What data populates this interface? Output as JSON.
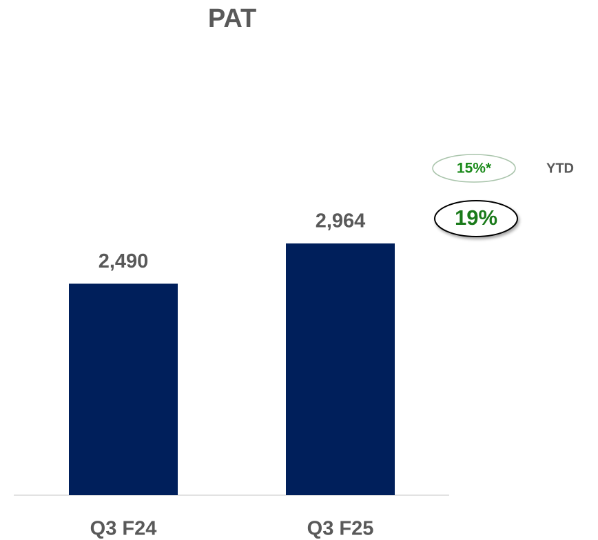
{
  "chart_data": {
    "type": "bar",
    "title": "PAT",
    "categories": [
      "Q3 F24",
      "Q3 F25"
    ],
    "values": [
      2490,
      2964
    ],
    "value_labels": [
      "2,490",
      "2,964"
    ],
    "color": "#001f5b",
    "annotations": [
      "19%",
      "15%*",
      "YTD"
    ]
  }
}
